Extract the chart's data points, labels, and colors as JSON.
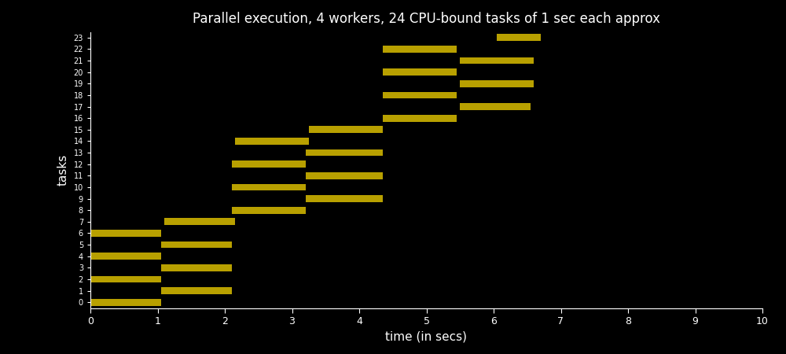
{
  "title": "Parallel execution, 4 workers, 24 CPU-bound tasks of 1 sec each approx",
  "xlabel": "time (in secs)",
  "ylabel": "tasks",
  "bar_color": "#b8a000",
  "background_color": "#000000",
  "text_color": "#ffffff",
  "xlim": [
    0,
    10
  ],
  "ylim": [
    -0.5,
    23.5
  ],
  "xticks": [
    0,
    1,
    2,
    3,
    4,
    5,
    6,
    7,
    8,
    9,
    10
  ],
  "tasks": [
    {
      "task": 0,
      "start": 0.0,
      "end": 1.05
    },
    {
      "task": 1,
      "start": 1.05,
      "end": 2.1
    },
    {
      "task": 2,
      "start": 0.0,
      "end": 1.05
    },
    {
      "task": 3,
      "start": 1.05,
      "end": 2.1
    },
    {
      "task": 4,
      "start": 0.0,
      "end": 1.05
    },
    {
      "task": 5,
      "start": 1.05,
      "end": 2.1
    },
    {
      "task": 6,
      "start": 0.0,
      "end": 1.05
    },
    {
      "task": 7,
      "start": 1.1,
      "end": 2.15
    },
    {
      "task": 8,
      "start": 2.1,
      "end": 3.2
    },
    {
      "task": 9,
      "start": 3.2,
      "end": 4.35
    },
    {
      "task": 10,
      "start": 2.1,
      "end": 3.2
    },
    {
      "task": 11,
      "start": 3.2,
      "end": 4.35
    },
    {
      "task": 12,
      "start": 2.1,
      "end": 3.2
    },
    {
      "task": 13,
      "start": 3.2,
      "end": 4.35
    },
    {
      "task": 14,
      "start": 2.15,
      "end": 3.25
    },
    {
      "task": 15,
      "start": 3.25,
      "end": 4.35
    },
    {
      "task": 16,
      "start": 4.35,
      "end": 5.45
    },
    {
      "task": 17,
      "start": 5.5,
      "end": 6.55
    },
    {
      "task": 18,
      "start": 4.35,
      "end": 5.45
    },
    {
      "task": 19,
      "start": 5.5,
      "end": 6.6
    },
    {
      "task": 20,
      "start": 4.35,
      "end": 5.45
    },
    {
      "task": 21,
      "start": 5.5,
      "end": 6.6
    },
    {
      "task": 22,
      "start": 4.35,
      "end": 5.45
    },
    {
      "task": 23,
      "start": 6.05,
      "end": 6.7
    }
  ]
}
